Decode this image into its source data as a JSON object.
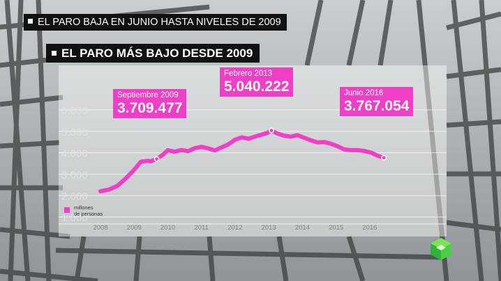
{
  "headline": "EL PARO BAJA EN JUNIO HASTA NIVELES DE 2009",
  "chart_title": "EL PARO MÁS BAJO DESDE 2009",
  "colors": {
    "series": "#f13ec6",
    "callout_bg": "#f13ec6"
  },
  "logo_icon": "green-cube-logo-icon",
  "legend": {
    "line1": "millones",
    "line2": "de personas"
  },
  "callouts": [
    {
      "label": "Septiembre 2009",
      "value": "3.709.477"
    },
    {
      "label": "Febrero 2013",
      "value": "5.040.222"
    },
    {
      "label": "Junio 2016",
      "value": "3.767.054"
    }
  ],
  "chart_data": {
    "type": "line",
    "title": "EL PARO MÁS BAJO DESDE 2009",
    "ylabel": "millones de personas",
    "ylim": [
      0,
      6000
    ],
    "xlim": [
      2008,
      2016.5
    ],
    "yticks": [
      1000,
      2000,
      3000,
      4000,
      5000,
      6000
    ],
    "ytick_labels": [
      "1.000",
      "2.000",
      "3.000",
      "4.000",
      "5.000",
      "6.000"
    ],
    "xticks": [
      2008,
      2009,
      2010,
      2011,
      2012,
      2013,
      2014,
      2015,
      2016
    ],
    "xtick_labels": [
      "2008",
      "2009",
      "2010",
      "2011",
      "2012",
      "2013",
      "2014",
      "2015",
      "2016"
    ],
    "grid": true,
    "series": [
      {
        "x": [
          2008.0,
          2008.25,
          2008.5,
          2008.75,
          2009.0,
          2009.2,
          2009.4,
          2009.5,
          2009.67,
          2009.85,
          2010.0,
          2010.2,
          2010.4,
          2010.6,
          2010.8,
          2011.0,
          2011.2,
          2011.4,
          2011.6,
          2011.8,
          2012.0,
          2012.2,
          2012.4,
          2012.6,
          2012.8,
          2012.95,
          2013.08,
          2013.25,
          2013.45,
          2013.65,
          2013.85,
          2014.05,
          2014.25,
          2014.45,
          2014.65,
          2014.85,
          2015.05,
          2015.25,
          2015.45,
          2015.65,
          2015.85,
          2016.05,
          2016.25,
          2016.42
        ],
        "values": [
          2200,
          2280,
          2450,
          2800,
          3200,
          3580,
          3620,
          3600,
          3710,
          3900,
          4120,
          4050,
          4130,
          4070,
          4210,
          4280,
          4200,
          4110,
          4250,
          4390,
          4610,
          4720,
          4650,
          4760,
          4850,
          4920,
          5040,
          4900,
          4800,
          4750,
          4820,
          4700,
          4580,
          4480,
          4500,
          4420,
          4300,
          4150,
          4120,
          4120,
          4080,
          4000,
          3850,
          3767
        ]
      }
    ],
    "highlights": [
      {
        "x": 2009.67,
        "y": 3709.477,
        "label": "Septiembre 2009"
      },
      {
        "x": 2013.08,
        "y": 5040.222,
        "label": "Febrero 2013"
      },
      {
        "x": 2016.42,
        "y": 3767.054,
        "label": "Junio 2016"
      }
    ]
  }
}
